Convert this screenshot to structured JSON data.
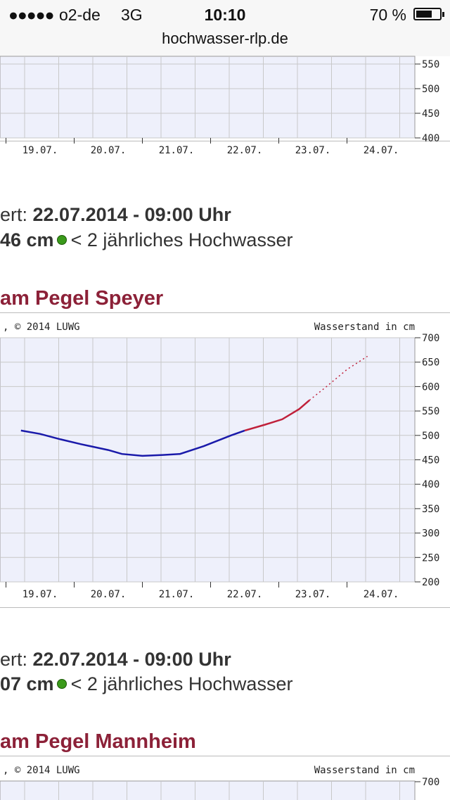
{
  "status_bar": {
    "signal": "●●●●●",
    "carrier": "o2-de",
    "network": "3G",
    "time": "10:10",
    "battery": "70 %",
    "battery_level": 0.7
  },
  "browser": {
    "url": "hochwasser-rlp.de"
  },
  "chart1": {
    "y_ticks": [
      "550",
      "500",
      "450",
      "400"
    ],
    "x_ticks": [
      "19.07.",
      "20.07.",
      "21.07.",
      "22.07.",
      "23.07.",
      "24.07."
    ]
  },
  "gauge1": {
    "measured_prefix": "ert: ",
    "measured_time": "22.07.2014 - 09:00 Uhr",
    "level": "46 cm",
    "flood_class": "< 2 jährliches Hochwasser"
  },
  "section_speyer": {
    "title": "am Pegel Speyer"
  },
  "chart_data": [
    {
      "type": "line",
      "title": "",
      "copyright": ", © 2014 LUWG",
      "ylabel": "Wasserstand in cm",
      "ylim": [
        200,
        700
      ],
      "y_ticks": [
        "700",
        "650",
        "600",
        "550",
        "500",
        "450",
        "400",
        "350",
        "300",
        "250",
        "200"
      ],
      "x_ticks": [
        "19.07.",
        "20.07.",
        "21.07.",
        "22.07.",
        "23.07.",
        "24.07."
      ],
      "series": [
        {
          "color": "#1a1aaa",
          "style": "solid",
          "x": [
            18.72,
            19.0,
            19.3,
            19.6,
            20.0,
            20.2,
            20.5,
            20.8,
            21.05,
            21.4,
            21.8,
            22.0
          ],
          "y": [
            510,
            503,
            492,
            482,
            470,
            462,
            458,
            460,
            462,
            478,
            500,
            510
          ]
        },
        {
          "color": "#c0203a",
          "style": "solid",
          "x": [
            22.0,
            22.3,
            22.55,
            22.8,
            22.95
          ],
          "y": [
            510,
            522,
            533,
            554,
            572
          ]
        },
        {
          "color": "#c0203a",
          "style": "dotted",
          "x": [
            22.95,
            23.2,
            23.5,
            23.8
          ],
          "y": [
            572,
            600,
            635,
            662
          ]
        }
      ]
    }
  ],
  "gauge2": {
    "measured_prefix": "ert: ",
    "measured_time": "22.07.2014 - 09:00 Uhr",
    "level": "07 cm",
    "flood_class": "< 2 jährliches Hochwasser"
  },
  "section_mannheim": {
    "title": "am Pegel Mannheim"
  },
  "chart3": {
    "copyright": ", © 2014 LUWG",
    "ylabel": "Wasserstand in cm",
    "y_top": "700"
  },
  "colors": {
    "title_red": "#8c2138",
    "plot_bg": "#eef0fb",
    "grid": "#c8c8c8"
  }
}
